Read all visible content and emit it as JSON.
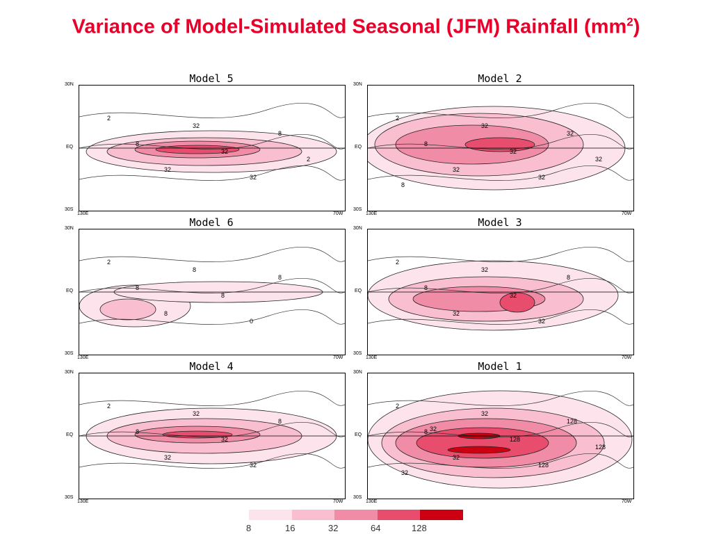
{
  "header": {
    "title": "Variance of Model-Simulated Seasonal (JFM) Rainfall (mm",
    "superscript": "2",
    "closing": ")"
  },
  "panels": [
    {
      "name": "Model 5",
      "contours": [
        "2",
        "8",
        "32",
        "32",
        "32",
        "32",
        "8",
        "2"
      ]
    },
    {
      "name": "Model 2",
      "contours": [
        "2",
        "8",
        "32",
        "32",
        "32",
        "32",
        "32",
        "32",
        "8"
      ]
    },
    {
      "name": "Model 6",
      "contours": [
        "2",
        "8",
        "8",
        "8",
        "8",
        "0",
        "8"
      ]
    },
    {
      "name": "Model 3",
      "contours": [
        "2",
        "8",
        "32",
        "32",
        "32",
        "32",
        "8"
      ]
    },
    {
      "name": "Model 4",
      "contours": [
        "2",
        "8",
        "32",
        "32",
        "32",
        "32",
        "8"
      ]
    },
    {
      "name": "Model 1",
      "contours": [
        "2",
        "8",
        "32",
        "32",
        "128",
        "128",
        "128",
        "128",
        "32",
        "32"
      ]
    }
  ],
  "axes": {
    "lat_top": "30N",
    "lat_eq": "EQ",
    "lat_bottom": "30S",
    "lon_left": "130E",
    "lon_right": "70W"
  },
  "legend": {
    "labels": [
      "8",
      "16",
      "32",
      "64",
      "128"
    ],
    "colors": [
      "#fde4ec",
      "#f9bfd0",
      "#f08ca6",
      "#e84d6d",
      "#cc0010"
    ]
  }
}
